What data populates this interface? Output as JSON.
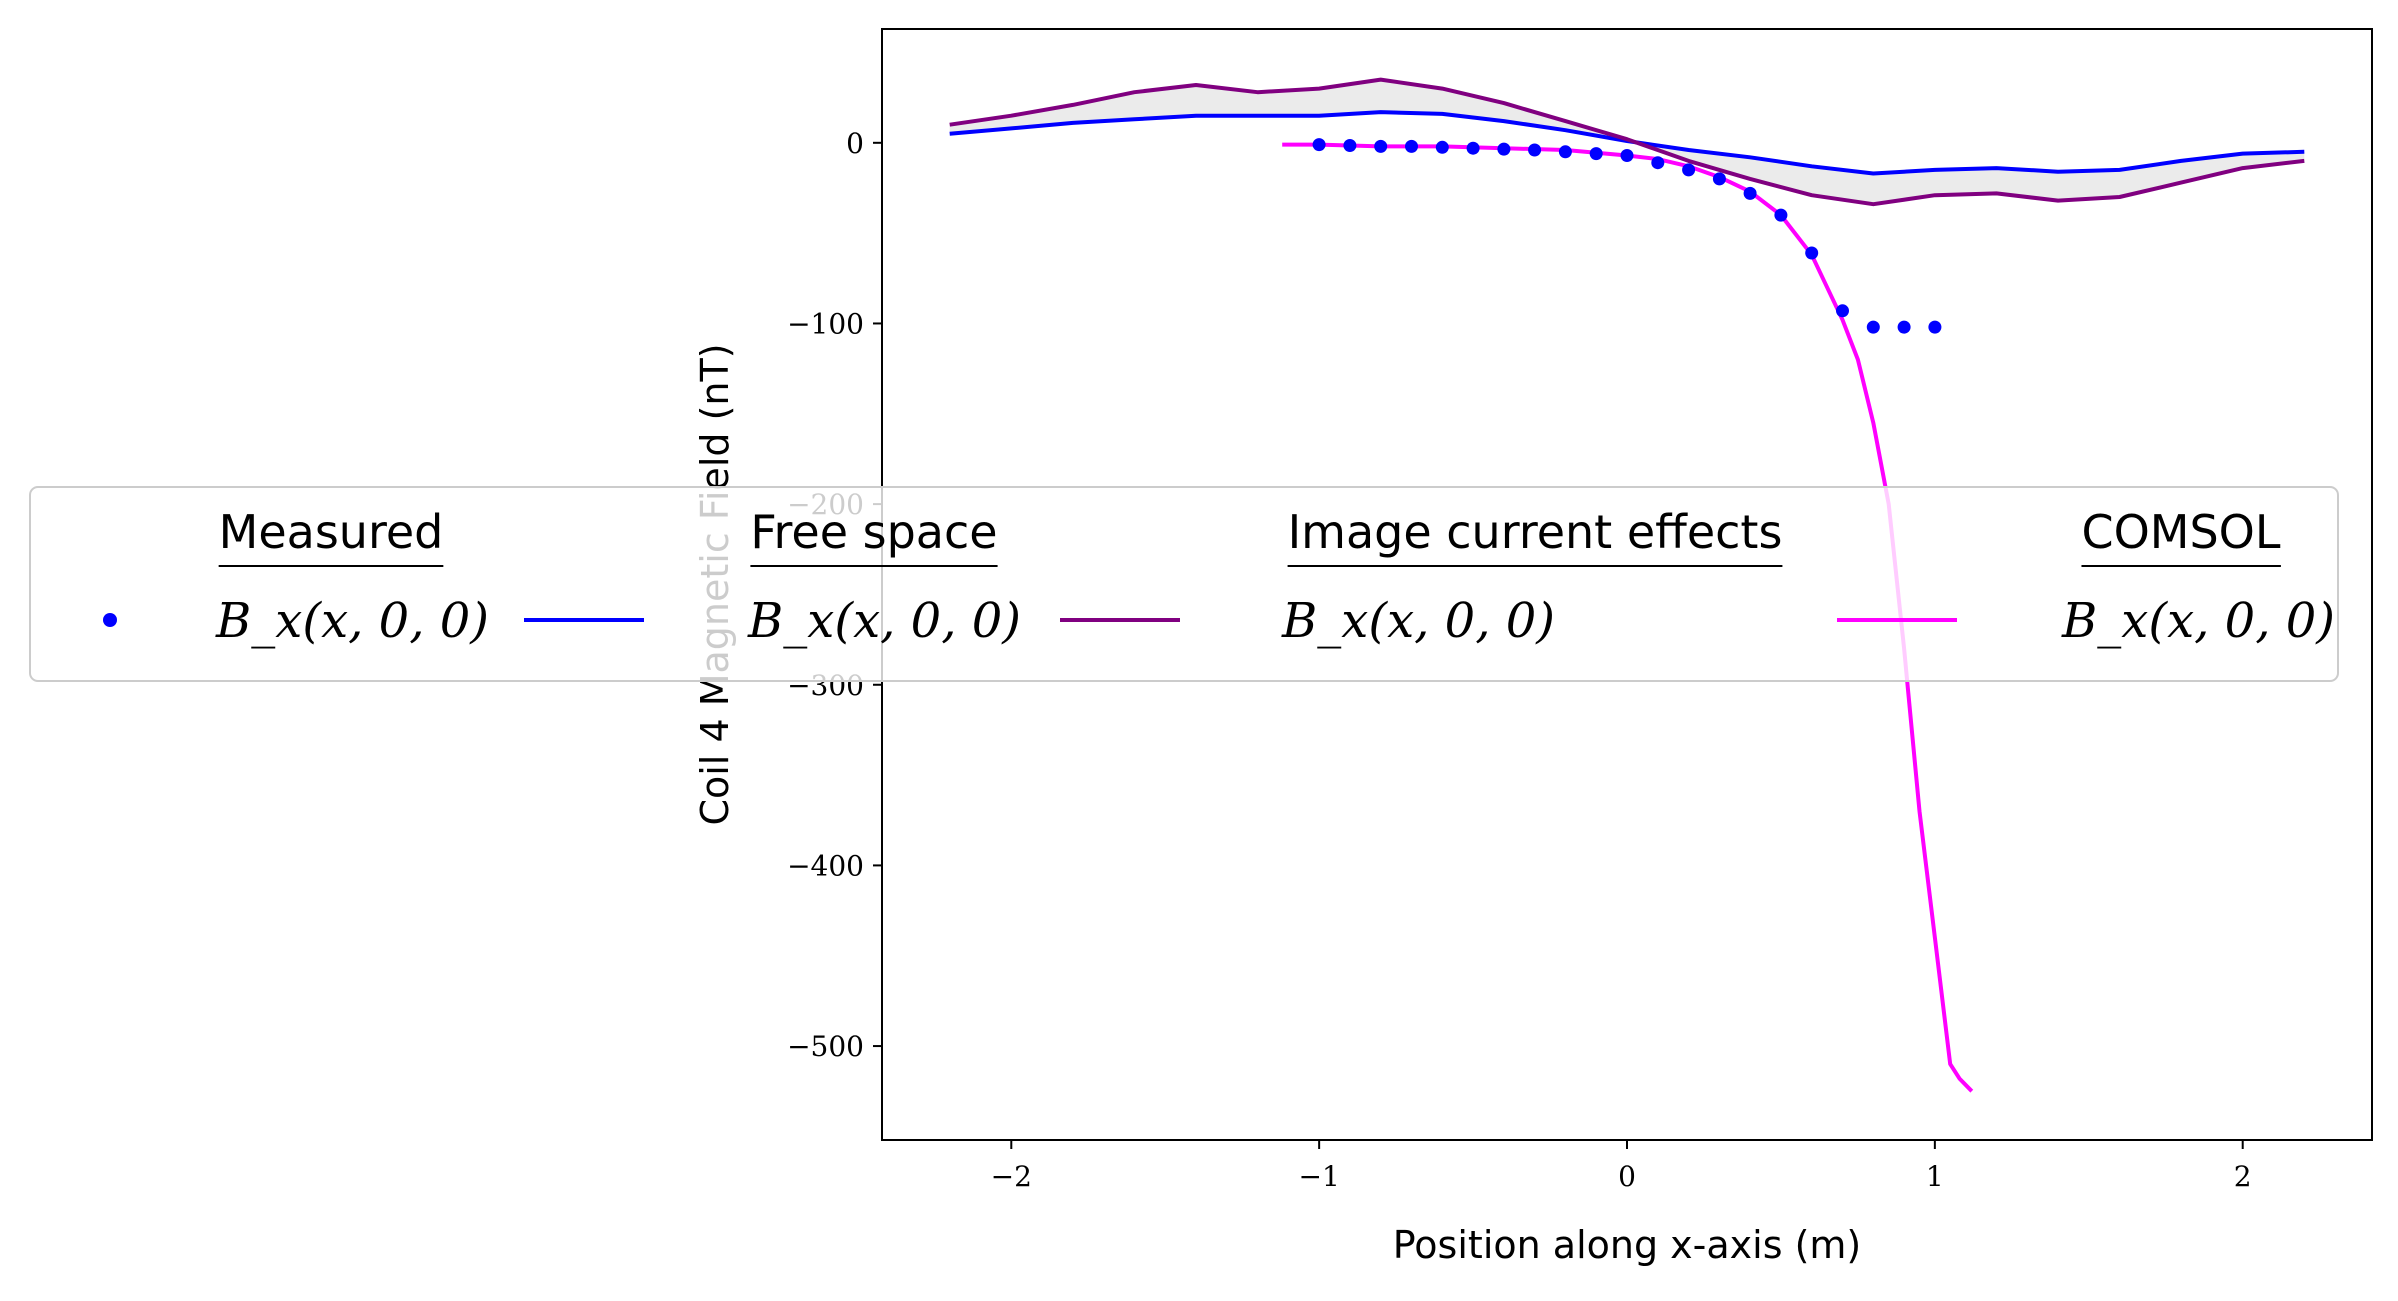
{
  "chart_data": {
    "type": "line",
    "xlabel": "Position along x-axis (m)",
    "ylabel": "Coil 4 Magnetic Field (nT)",
    "xlim": [
      -2.42,
      2.42
    ],
    "ylim": [
      -552,
      63
    ],
    "xticks": [
      -2,
      -1,
      0,
      1,
      2
    ],
    "yticks": [
      0,
      -100,
      -200,
      -300,
      -400,
      -500
    ],
    "grid": false,
    "legend_placement": "center (overlapping plot)",
    "legend": [
      {
        "title": "Measured",
        "label": "B_x(x, 0, 0)",
        "marker": "dot",
        "color": "#0000ff"
      },
      {
        "title": "Free space",
        "label": "B_x(x, 0, 0)",
        "marker": "line",
        "color": "#0000ff"
      },
      {
        "title": "Image current effects",
        "label": "B_x(x, 0, 0)",
        "marker": "line",
        "color": "#800080"
      },
      {
        "title": "COMSOL",
        "label": "B_x(x, 0, 0)",
        "marker": "line",
        "color": "#ff00ff"
      }
    ],
    "series": [
      {
        "name": "Measured",
        "style": "scatter",
        "color": "#0000ff",
        "x": [
          -1.0,
          -0.9,
          -0.8,
          -0.7,
          -0.6,
          -0.5,
          -0.4,
          -0.3,
          -0.2,
          -0.1,
          0.0,
          0.1,
          0.2,
          0.3,
          0.4,
          0.5,
          0.6,
          0.7,
          0.8,
          0.9,
          1.0
        ],
        "y": [
          -1,
          -1.5,
          -2,
          -2,
          -2.5,
          -3,
          -3.5,
          -4,
          -5,
          -6,
          -7,
          -11,
          -15,
          -20,
          -28,
          -40,
          -61,
          -93,
          -102,
          -102,
          -102
        ]
      },
      {
        "name": "Free space",
        "style": "line",
        "color": "#0000ff",
        "x": [
          -2.2,
          -2.0,
          -1.8,
          -1.6,
          -1.4,
          -1.2,
          -1.0,
          -0.8,
          -0.6,
          -0.4,
          -0.2,
          0.0,
          0.2,
          0.4,
          0.6,
          0.8,
          1.0,
          1.2,
          1.4,
          1.6,
          1.8,
          2.0,
          2.2
        ],
        "y": [
          5,
          8,
          11,
          13,
          15,
          15,
          15,
          17,
          16,
          12,
          7,
          1,
          -4,
          -8,
          -13,
          -17,
          -15,
          -14,
          -16,
          -15,
          -10,
          -6,
          -5
        ]
      },
      {
        "name": "Image current effects",
        "style": "line",
        "color": "#800080",
        "x": [
          -2.2,
          -2.0,
          -1.8,
          -1.6,
          -1.4,
          -1.2,
          -1.0,
          -0.8,
          -0.6,
          -0.4,
          -0.2,
          0.0,
          0.2,
          0.4,
          0.6,
          0.8,
          1.0,
          1.2,
          1.4,
          1.6,
          1.8,
          2.0,
          2.2
        ],
        "y": [
          10,
          15,
          21,
          28,
          32,
          28,
          30,
          35,
          30,
          22,
          12,
          2,
          -10,
          -20,
          -29,
          -34,
          -29,
          -28,
          -32,
          -30,
          -22,
          -14,
          -10
        ]
      },
      {
        "name": "COMSOL",
        "style": "line",
        "color": "#ff00ff",
        "x": [
          -1.12,
          -1.0,
          -0.8,
          -0.6,
          -0.4,
          -0.2,
          0.0,
          0.1,
          0.2,
          0.3,
          0.4,
          0.5,
          0.6,
          0.65,
          0.7,
          0.75,
          0.8,
          0.85,
          0.9,
          0.95,
          1.0,
          1.05,
          1.08,
          1.12
        ],
        "y": [
          -1,
          -1,
          -2,
          -2,
          -3,
          -4,
          -7,
          -9,
          -13,
          -19,
          -27,
          -40,
          -62,
          -80,
          -98,
          -120,
          -155,
          -200,
          -280,
          -370,
          -440,
          -510,
          -518,
          -525
        ]
      }
    ],
    "fill_between": {
      "between": [
        "Free space",
        "Image current effects"
      ],
      "color": "#ebebeb"
    }
  }
}
